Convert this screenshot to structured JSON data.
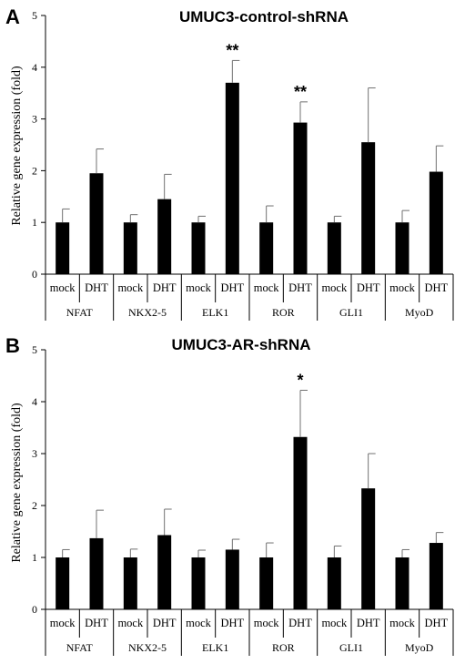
{
  "chart_data": [
    {
      "type": "bar",
      "panel": "A",
      "title": "UMUC3-control-shRNA",
      "ylabel": "Relative gene expression (fold)",
      "ylim": [
        0,
        5
      ],
      "yticks": [
        0,
        1,
        2,
        3,
        4,
        5
      ],
      "groups": [
        "NFAT",
        "NKX2-5",
        "ELK1",
        "ROR",
        "GLI1",
        "MyoD"
      ],
      "conditions": [
        "mock",
        "DHT"
      ],
      "values": [
        [
          1.0,
          1.95
        ],
        [
          1.0,
          1.45
        ],
        [
          1.0,
          3.7
        ],
        [
          1.0,
          2.93
        ],
        [
          1.0,
          2.55
        ],
        [
          1.0,
          1.98
        ]
      ],
      "errors": [
        [
          0.26,
          0.47
        ],
        [
          0.15,
          0.48
        ],
        [
          0.12,
          0.43
        ],
        [
          0.32,
          0.4
        ],
        [
          0.12,
          1.05
        ],
        [
          0.23,
          0.5
        ]
      ],
      "significance": [
        "",
        "",
        "**",
        "**",
        "",
        ""
      ]
    },
    {
      "type": "bar",
      "panel": "B",
      "title": "UMUC3-AR-shRNA",
      "ylabel": "Relative gene expression (fold)",
      "ylim": [
        0,
        5
      ],
      "yticks": [
        0,
        1,
        2,
        3,
        4,
        5
      ],
      "groups": [
        "NFAT",
        "NKX2-5",
        "ELK1",
        "ROR",
        "GLI1",
        "MyoD"
      ],
      "conditions": [
        "mock",
        "DHT"
      ],
      "values": [
        [
          1.0,
          1.37
        ],
        [
          1.0,
          1.43
        ],
        [
          1.0,
          1.15
        ],
        [
          1.0,
          3.32
        ],
        [
          1.0,
          2.33
        ],
        [
          1.0,
          1.28
        ]
      ],
      "errors": [
        [
          0.15,
          0.54
        ],
        [
          0.16,
          0.5
        ],
        [
          0.14,
          0.2
        ],
        [
          0.28,
          0.9
        ],
        [
          0.22,
          0.67
        ],
        [
          0.15,
          0.2
        ]
      ],
      "significance": [
        "",
        "",
        "",
        "*",
        "",
        ""
      ]
    }
  ]
}
